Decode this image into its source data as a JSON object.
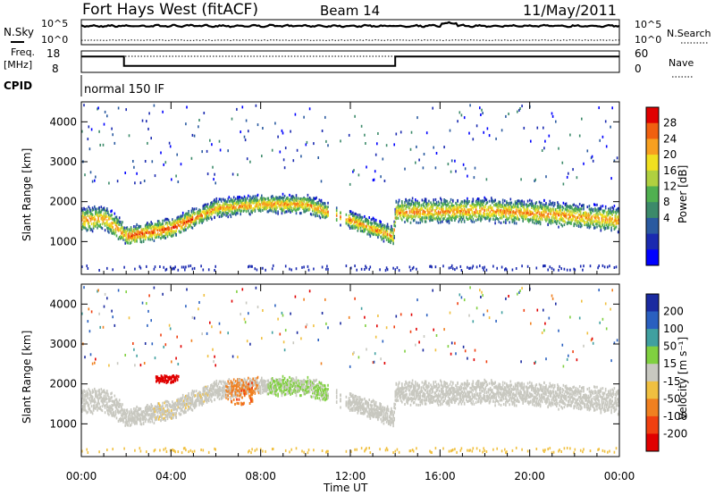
{
  "header": {
    "station": "Fort Hays West (fitACF)",
    "beam": "Beam 14",
    "date": "11/May/2011"
  },
  "noise_panel": {
    "left_label": "N.Sky",
    "right_label": "N.Search",
    "left_ticks": [
      "10^5",
      "10^0"
    ],
    "right_ticks": [
      "10^5",
      "10^0"
    ]
  },
  "freq_panel": {
    "left_label_1": "Freq.",
    "left_label_2": "[MHz]",
    "right_label": "Nave",
    "left_ticks": [
      "18",
      "8"
    ],
    "right_ticks": [
      "60",
      "0"
    ]
  },
  "cpid": {
    "label": "CPID",
    "mode": "normal 150 IF"
  },
  "power_colorbar": {
    "title": "Power [dB]",
    "ticks": [
      "28",
      "24",
      "20",
      "16",
      "12",
      "8",
      "4"
    ],
    "colors": [
      "#e00000",
      "#f06010",
      "#f7a020",
      "#f0e020",
      "#b0d040",
      "#50b050",
      "#3c8a6a",
      "#2a5aa0",
      "#1a2ab0",
      "#0000ff"
    ]
  },
  "velocity_colorbar": {
    "title": "Velocity [m s⁻¹]",
    "ticks": [
      "200",
      "100",
      "50",
      "15",
      "-15",
      "-50",
      "-100",
      "-200"
    ],
    "colors": [
      "#1a2aa0",
      "#2a60c0",
      "#40a0a0",
      "#80d040",
      "#c8c8c0",
      "#f0c040",
      "#f08020",
      "#f04010",
      "#e00000"
    ]
  },
  "chart_data": {
    "type": "heatmap",
    "title": "Fort Hays West (fitACF)  Beam 14  11/May/2011",
    "xlabel": "Time UT",
    "x_ticks": [
      "00:00",
      "04:00",
      "08:00",
      "12:00",
      "16:00",
      "20:00",
      "00:00"
    ],
    "xlim_hours": [
      0,
      24
    ],
    "ylabel": "Slant Range [km]",
    "y_ticks": [
      1000,
      2000,
      3000,
      4000
    ],
    "ylim_km": [
      180,
      4500
    ],
    "panels": [
      "Power [dB]",
      "Velocity [m s-1]"
    ],
    "freq_mhz_segments": [
      {
        "start_h": 0.0,
        "end_h": 1.9,
        "value": 16
      },
      {
        "start_h": 1.9,
        "end_h": 14.0,
        "value": 11
      },
      {
        "start_h": 14.0,
        "end_h": 24.0,
        "value": 16
      }
    ],
    "main_echo_band": [
      {
        "t": 0.0,
        "km": 1500
      },
      {
        "t": 1.0,
        "km": 1550
      },
      {
        "t": 2.0,
        "km": 1100
      },
      {
        "t": 4.0,
        "km": 1300
      },
      {
        "t": 6.0,
        "km": 1800
      },
      {
        "t": 8.0,
        "km": 1900
      },
      {
        "t": 10.0,
        "km": 1900
      },
      {
        "t": 12.0,
        "km": 1500
      },
      {
        "t": 13.9,
        "km": 1100
      },
      {
        "t": 14.0,
        "km": 1700
      },
      {
        "t": 18.0,
        "km": 1750
      },
      {
        "t": 21.0,
        "km": 1650
      },
      {
        "t": 24.0,
        "km": 1500
      }
    ]
  }
}
